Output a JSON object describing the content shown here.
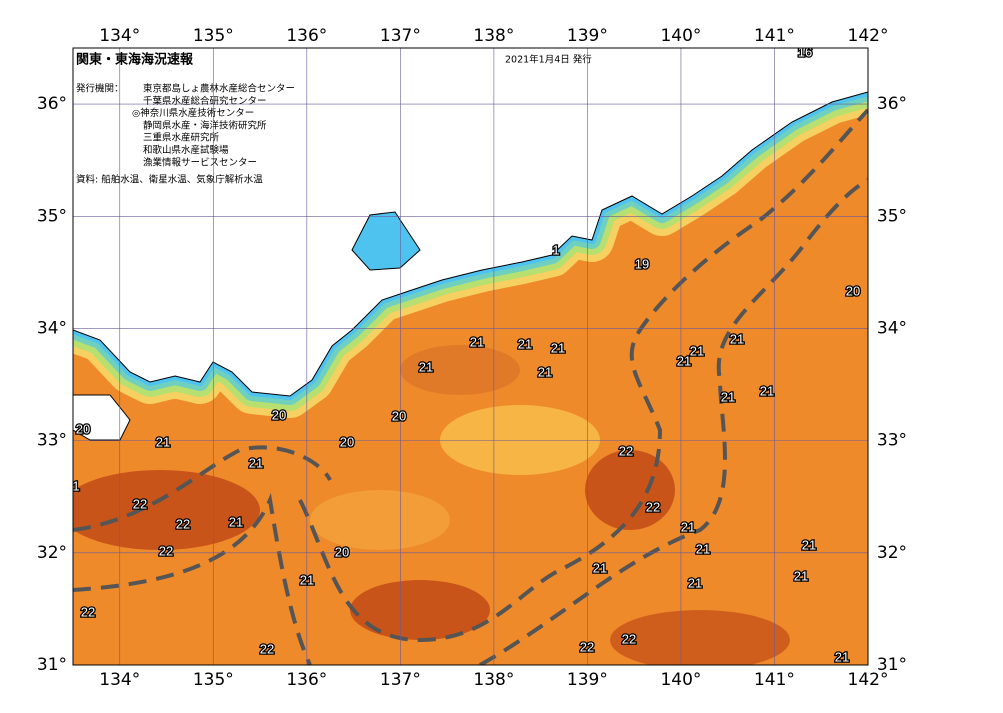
{
  "map": {
    "title": "関東・東海海況速報",
    "issued": "2021年1月4日 発行",
    "agencies_label": "発行機関：",
    "agencies": [
      "東京都島しょ農林水産総合センター",
      "千葉県水産総合研究センター",
      "◎神奈川県水産技術センター",
      "静岡県水産・海洋技術研究所",
      "三重県水産研究所",
      "和歌山県水産試験場",
      "漁業情報サービスセンター"
    ],
    "source": "資料: 船舶水温、衛星水温、気象庁解析水温",
    "xlim": [
      133.5,
      142
    ],
    "ylim": [
      31,
      36.5
    ],
    "xticks": [
      {
        "value": 134,
        "label": "134°"
      },
      {
        "value": 135,
        "label": "135°"
      },
      {
        "value": 136,
        "label": "136°"
      },
      {
        "value": 137,
        "label": "137°"
      },
      {
        "value": 138,
        "label": "138°"
      },
      {
        "value": 139,
        "label": "139°"
      },
      {
        "value": 140,
        "label": "140°"
      },
      {
        "value": 141,
        "label": "141°"
      },
      {
        "value": 142,
        "label": "142°"
      }
    ],
    "yticks": [
      {
        "value": 31,
        "label": "31°"
      },
      {
        "value": 32,
        "label": "32°"
      },
      {
        "value": 33,
        "label": "33°"
      },
      {
        "value": 34,
        "label": "34°"
      },
      {
        "value": 35,
        "label": "35°"
      },
      {
        "value": 36,
        "label": "36°"
      }
    ],
    "contour_labels": [
      "16",
      "19",
      "20",
      "21",
      "21",
      "21",
      "21",
      "21",
      "21",
      "21",
      "21",
      "21",
      "21",
      "20",
      "20",
      "20",
      "20",
      "21",
      "22",
      "21",
      "22",
      "22",
      "22",
      "21",
      "21",
      "20",
      "22",
      "21",
      "21",
      "21",
      "21",
      "21",
      "21",
      "22",
      "22",
      "22",
      "22",
      "21",
      "1",
      "1"
    ]
  }
}
